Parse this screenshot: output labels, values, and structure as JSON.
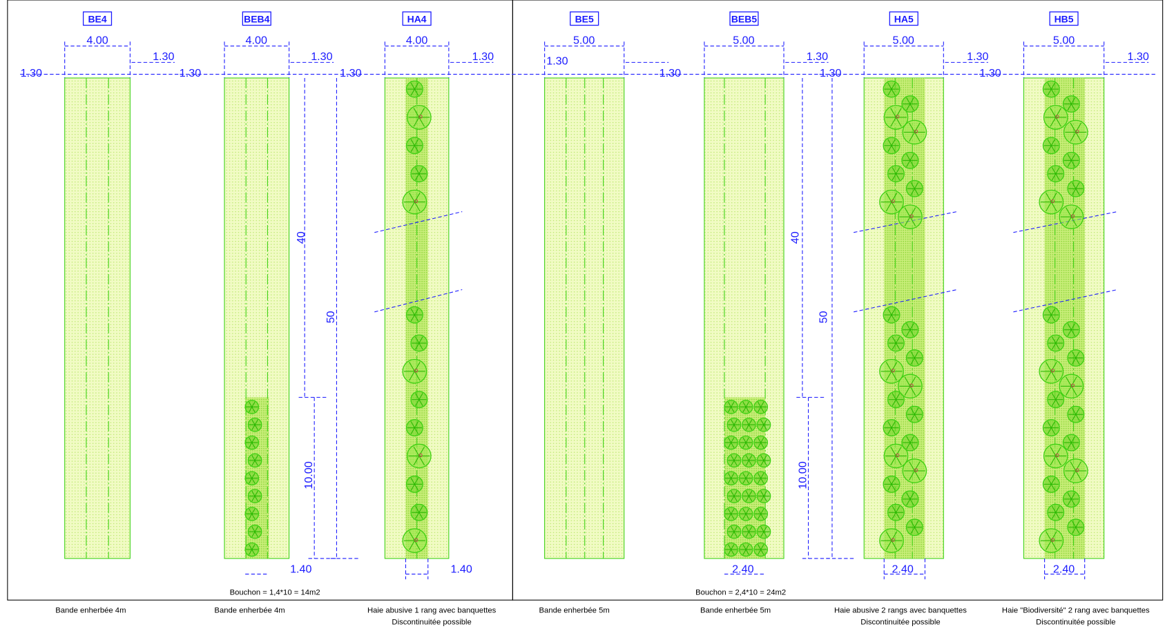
{
  "panels": [
    {
      "title": "BE4",
      "dimensions": [
        "4.00",
        "1.30",
        "1.30"
      ],
      "caption": [
        "Bande enherbée 4m"
      ]
    },
    {
      "title": "BEB4",
      "dimensions": [
        "4.00",
        "1.30",
        "1.30",
        "1.30",
        "40",
        "50",
        "10.00",
        "1.40"
      ],
      "caption": [
        "Bande enherbée 4m"
      ]
    },
    {
      "title": "HA4",
      "dimensions": [
        "4.00",
        "1.30",
        "1.40"
      ],
      "caption": [
        "Haie abusive 1 rang  avec banquettes",
        "Discontinuitée possible"
      ]
    },
    {
      "title": "BE5",
      "dimensions": [
        "5.00",
        "1.30"
      ],
      "caption": [
        "Bande enherbée 5m"
      ]
    },
    {
      "title": "BEB5",
      "dimensions": [
        "5.00",
        "1.30",
        "1.30",
        "1.30",
        "40",
        "50",
        "10.00",
        "2.40"
      ],
      "caption": [
        "Bande enherbée 5m"
      ]
    },
    {
      "title": "HA5",
      "dimensions": [
        "5.00",
        "1.30",
        "2.40"
      ],
      "caption": [
        "Haie abusive 2 rangs  avec banquettes",
        "Discontinuitée possible"
      ]
    },
    {
      "title": "HB5",
      "dimensions": [
        "5.00",
        "1.30",
        "1.30",
        "2.40"
      ],
      "caption": [
        "Haie \"Biodiversité\" 2 rang  avec banquettes",
        "Discontinuitée possible"
      ]
    }
  ],
  "notes": [
    "Bouchon = 1,4*10 = 14m2",
    "Bouchon = 2,4*10 = 24m2"
  ]
}
